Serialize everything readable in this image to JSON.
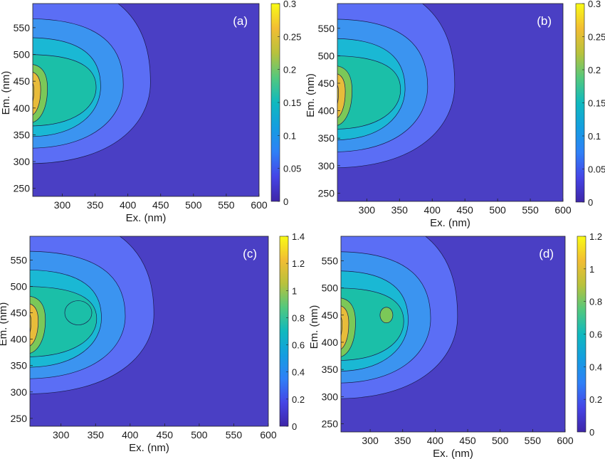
{
  "chart_data": [
    {
      "type": "heatmap",
      "panel_label": "(a)",
      "xlabel": "Ex. (nm)",
      "ylabel": "Em. (nm)",
      "xlim": [
        255,
        600
      ],
      "ylim": [
        235,
        595
      ],
      "xticks": [
        300,
        350,
        400,
        450,
        500,
        550,
        600
      ],
      "yticks": [
        250,
        300,
        350,
        400,
        450,
        500,
        550
      ],
      "colorbar": {
        "range": [
          0,
          0.3
        ],
        "ticks": [
          "0",
          "0.05",
          "0.1",
          "0.15",
          "0.2",
          "0.25",
          "0.3"
        ]
      },
      "peaks": [
        {
          "ex": 255,
          "em": 460,
          "value": 0.28
        },
        {
          "ex": 330,
          "em": 450,
          "value": 0.12
        }
      ]
    },
    {
      "type": "heatmap",
      "panel_label": "(b)",
      "xlabel": "Ex. (nm)",
      "ylabel": "Em. (nm)",
      "xlim": [
        255,
        600
      ],
      "ylim": [
        235,
        595
      ],
      "xticks": [
        300,
        350,
        400,
        450,
        500,
        550,
        600
      ],
      "yticks": [
        250,
        300,
        350,
        400,
        450,
        500,
        550
      ],
      "colorbar": {
        "range": [
          0,
          0.3
        ],
        "ticks": [
          "0",
          "0.05",
          "0.1",
          "0.15",
          "0.2",
          "0.25",
          "0.3"
        ]
      },
      "peaks": [
        {
          "ex": 255,
          "em": 445,
          "value": 0.27
        },
        {
          "ex": 330,
          "em": 450,
          "value": 0.13
        }
      ]
    },
    {
      "type": "heatmap",
      "panel_label": "(c)",
      "xlabel": "Ex. (nm)",
      "ylabel": "Em. (nm)",
      "xlim": [
        255,
        600
      ],
      "ylim": [
        235,
        595
      ],
      "xticks": [
        300,
        350,
        400,
        450,
        500,
        550,
        600
      ],
      "yticks": [
        250,
        300,
        350,
        400,
        450,
        500,
        550
      ],
      "colorbar": {
        "range": [
          0,
          1.4
        ],
        "ticks": [
          "0",
          "0.2",
          "0.4",
          "0.6",
          "0.8",
          "1",
          "1.2",
          "1.4"
        ]
      },
      "peaks": [
        {
          "ex": 255,
          "em": 450,
          "value": 1.15
        },
        {
          "ex": 325,
          "em": 450,
          "value": 0.7
        }
      ]
    },
    {
      "type": "heatmap",
      "panel_label": "(d)",
      "xlabel": "Ex. (nm)",
      "ylabel": "Em. (nm)",
      "xlim": [
        255,
        600
      ],
      "ylim": [
        235,
        595
      ],
      "xticks": [
        300,
        350,
        400,
        450,
        500,
        550,
        600
      ],
      "yticks": [
        250,
        300,
        350,
        400,
        450,
        500,
        550
      ],
      "colorbar": {
        "range": [
          0,
          1.2
        ],
        "ticks": [
          "0",
          "0.2",
          "0.4",
          "0.6",
          "0.8",
          "1",
          "1.2"
        ]
      },
      "peaks": [
        {
          "ex": 255,
          "em": 445,
          "value": 1.0
        },
        {
          "ex": 325,
          "em": 450,
          "value": 0.75
        }
      ]
    }
  ],
  "colors": {
    "levels": [
      "#4a3fc4",
      "#5b6ef5",
      "#3b94f0",
      "#1ab8d4",
      "#1bbfa8",
      "#7bc858",
      "#e8bc3a",
      "#f5e02a"
    ],
    "background": "#4a3fc4",
    "contour_line": "#1b1b4d"
  }
}
